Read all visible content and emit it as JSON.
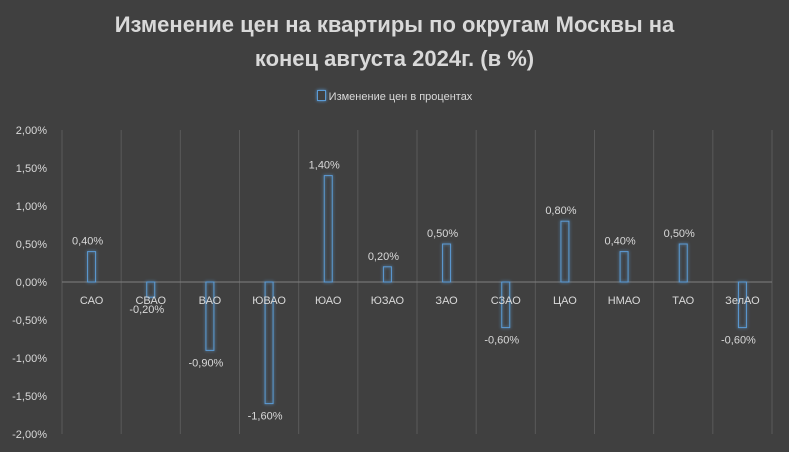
{
  "title_line1": "Изменение цен на квартиры по округам Москвы на",
  "title_line2": "конец августа 2024г. (в %)",
  "colors": {
    "background": "#404040",
    "bar_outline": "#5b9bd5",
    "grid": "#5a5a5a",
    "text": "#d9d9d9"
  },
  "chart_data": {
    "type": "bar",
    "title": "Изменение цен на квартиры по округам Москвы на конец августа 2024г. (в %)",
    "legend": {
      "position": "top",
      "entries": [
        "Изменение цен в процентах"
      ]
    },
    "categories": [
      "САО",
      "СВАО",
      "ВАО",
      "ЮВАО",
      "ЮАО",
      "ЮЗАО",
      "ЗАО",
      "СЗАО",
      "ЦАО",
      "НМАО",
      "ТАО",
      "ЗелАО"
    ],
    "series": [
      {
        "name": "Изменение цен в процентах",
        "values": [
          0.4,
          -0.2,
          -0.9,
          -1.6,
          1.4,
          0.2,
          0.5,
          -0.6,
          0.8,
          0.4,
          0.5,
          -0.6
        ],
        "labels": [
          "0,40%",
          "-0,20%",
          "-0,90%",
          "-1,60%",
          "1,40%",
          "0,20%",
          "0,50%",
          "-0,60%",
          "0,80%",
          "0,40%",
          "0,50%",
          "-0,60%"
        ]
      }
    ],
    "ylim": [
      -2.0,
      2.0
    ],
    "yticks": [
      2.0,
      1.5,
      1.0,
      0.5,
      0.0,
      -0.5,
      -1.0,
      -1.5,
      -2.0
    ],
    "ytick_labels": [
      "2,00%",
      "1,50%",
      "1,00%",
      "0,50%",
      "0,00%",
      "-0,50%",
      "-1,00%",
      "-1,50%",
      "-2,00%"
    ],
    "grid": {
      "vertical": true,
      "horizontal": false
    },
    "xlabel": "",
    "ylabel": ""
  }
}
